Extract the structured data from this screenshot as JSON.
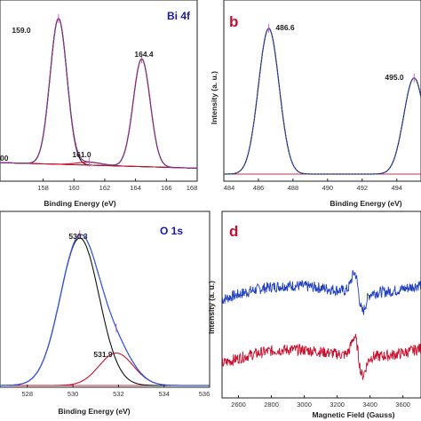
{
  "chart_data": [
    {
      "type": "line",
      "panel_letter": "",
      "tag": "Bi 4f",
      "xlabel": "Binding Energy (eV)",
      "ylabel": "",
      "xlim": [
        155.2,
        168
      ],
      "xticks": [
        158,
        160,
        162,
        164,
        166,
        168
      ],
      "peaks": [
        {
          "label": "159.0",
          "center": 159.0,
          "height": 1.0,
          "width": 0.55
        },
        {
          "label": "164.4",
          "center": 164.4,
          "height": 0.74,
          "width": 0.55
        },
        {
          "label": "161.0",
          "center": 161.0,
          "height": 0.02,
          "width": 0.8
        }
      ],
      "partial_labels": [
        "00"
      ]
    },
    {
      "type": "line",
      "panel_letter": "b",
      "tag": "",
      "xlabel": "Binding Energy (eV)",
      "ylabel": "Intensity (a. u.)",
      "xlim": [
        484,
        495.4
      ],
      "xticks": [
        484,
        486,
        488,
        490,
        492,
        494
      ],
      "peaks": [
        {
          "label": "486.6",
          "center": 486.6,
          "height": 1.0,
          "width": 0.6
        },
        {
          "label": "495.0",
          "center": 495.0,
          "height": 0.66,
          "width": 0.6
        }
      ]
    },
    {
      "type": "line",
      "panel_letter": "",
      "tag": "O 1s",
      "xlabel": "Binding Energy (eV)",
      "ylabel": "",
      "xlim": [
        526.8,
        536
      ],
      "xticks": [
        528,
        530,
        532,
        534,
        536
      ],
      "peaks": [
        {
          "label": "530.3",
          "center": 530.3,
          "height": 1.0,
          "width": 0.85
        },
        {
          "label": "531.9",
          "center": 531.9,
          "height": 0.22,
          "width": 0.75
        }
      ]
    },
    {
      "type": "line",
      "panel_letter": "d",
      "tag": "",
      "xlabel": "Magnetic Field (Gauss)",
      "ylabel": "Intensity (a. u.)",
      "xlim": [
        2500,
        3710
      ],
      "xticks": [
        2600,
        2800,
        3000,
        3200,
        3400,
        3600
      ],
      "series": [
        {
          "color": "#1f3fbf",
          "offset": 0.62
        },
        {
          "color": "#c8102e",
          "offset": 0.22
        }
      ],
      "resonance_field": 3330
    }
  ],
  "colors": {
    "envelope": "#222222",
    "fit": "#3355dd",
    "component": "#c8102e",
    "baseline": "#d0324b",
    "marker": "#cc55aa"
  }
}
